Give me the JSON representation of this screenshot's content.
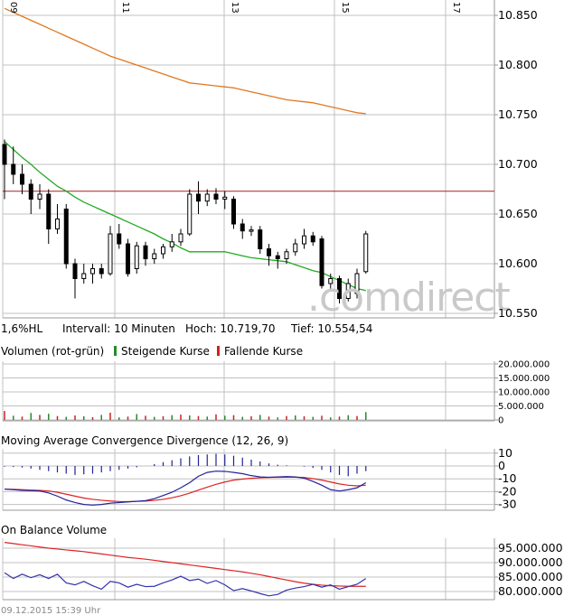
{
  "colors": {
    "grid": "#c0c0c0",
    "border": "#999999",
    "candle": "#000000",
    "ma_slow": "#e07820",
    "ma_fast": "#22aa22",
    "hline": "#aa2020",
    "vol_up": "#2a8a2a",
    "vol_down": "#cc2222",
    "macd_line": "#22229a",
    "signal_line": "#dd2222",
    "obv_line": "#3333aa",
    "obv_ma": "#dd2222"
  },
  "x_date_labels": [
    "09",
    "11",
    "13",
    "15",
    "17"
  ],
  "watermark": ".comdirect",
  "info_row": {
    "range": "1,6%HL",
    "interval": "Intervall: 10 Minuten",
    "high": "Hoch: 10.719,70",
    "low": "Tief: 10.554,54"
  },
  "volume_header": {
    "title": "Volumen (rot-grün)",
    "rising": "Steigende Kurse",
    "falling": "Fallende Kurse"
  },
  "macd_title": "Moving Average Convergence Divergence (12, 26, 9)",
  "obv_title": "On Balance Volume",
  "footer": "09.12.2015 15:39 Uhr",
  "chart_data": [
    {
      "type": "candlestick",
      "panel": "price",
      "y_ticks": [
        "10.850",
        "10.800",
        "10.750",
        "10.700",
        "10.650",
        "10.600",
        "10.550"
      ],
      "ylim": [
        10550,
        10858
      ],
      "candles": [
        {
          "o": 10720,
          "h": 10725,
          "l": 10665,
          "c": 10700
        },
        {
          "o": 10700,
          "h": 10718,
          "l": 10680,
          "c": 10690
        },
        {
          "o": 10690,
          "h": 10700,
          "l": 10670,
          "c": 10680
        },
        {
          "o": 10680,
          "h": 10685,
          "l": 10650,
          "c": 10665
        },
        {
          "o": 10665,
          "h": 10680,
          "l": 10655,
          "c": 10670
        },
        {
          "o": 10670,
          "h": 10675,
          "l": 10620,
          "c": 10635
        },
        {
          "o": 10635,
          "h": 10660,
          "l": 10630,
          "c": 10645
        },
        {
          "o": 10655,
          "h": 10660,
          "l": 10595,
          "c": 10600
        },
        {
          "o": 10600,
          "h": 10605,
          "l": 10565,
          "c": 10585
        },
        {
          "o": 10585,
          "h": 10600,
          "l": 10580,
          "c": 10590
        },
        {
          "o": 10590,
          "h": 10600,
          "l": 10580,
          "c": 10595
        },
        {
          "o": 10595,
          "h": 10600,
          "l": 10585,
          "c": 10590
        },
        {
          "o": 10590,
          "h": 10638,
          "l": 10588,
          "c": 10630
        },
        {
          "o": 10630,
          "h": 10640,
          "l": 10615,
          "c": 10620
        },
        {
          "o": 10620,
          "h": 10625,
          "l": 10587,
          "c": 10590
        },
        {
          "o": 10595,
          "h": 10622,
          "l": 10590,
          "c": 10618
        },
        {
          "o": 10618,
          "h": 10622,
          "l": 10598,
          "c": 10605
        },
        {
          "o": 10605,
          "h": 10615,
          "l": 10600,
          "c": 10610
        },
        {
          "o": 10610,
          "h": 10620,
          "l": 10605,
          "c": 10617
        },
        {
          "o": 10617,
          "h": 10630,
          "l": 10612,
          "c": 10622
        },
        {
          "o": 10622,
          "h": 10635,
          "l": 10618,
          "c": 10630
        },
        {
          "o": 10630,
          "h": 10675,
          "l": 10628,
          "c": 10670
        },
        {
          "o": 10670,
          "h": 10683,
          "l": 10650,
          "c": 10663
        },
        {
          "o": 10663,
          "h": 10675,
          "l": 10658,
          "c": 10670
        },
        {
          "o": 10670,
          "h": 10676,
          "l": 10660,
          "c": 10665
        },
        {
          "o": 10665,
          "h": 10673,
          "l": 10655,
          "c": 10667
        },
        {
          "o": 10665,
          "h": 10668,
          "l": 10635,
          "c": 10640
        },
        {
          "o": 10640,
          "h": 10645,
          "l": 10625,
          "c": 10633
        },
        {
          "o": 10633,
          "h": 10638,
          "l": 10628,
          "c": 10634
        },
        {
          "o": 10634,
          "h": 10638,
          "l": 10610,
          "c": 10615
        },
        {
          "o": 10615,
          "h": 10620,
          "l": 10598,
          "c": 10608
        },
        {
          "o": 10608,
          "h": 10612,
          "l": 10595,
          "c": 10605
        },
        {
          "o": 10605,
          "h": 10615,
          "l": 10600,
          "c": 10612
        },
        {
          "o": 10612,
          "h": 10625,
          "l": 10608,
          "c": 10620
        },
        {
          "o": 10620,
          "h": 10635,
          "l": 10615,
          "c": 10628
        },
        {
          "o": 10628,
          "h": 10632,
          "l": 10618,
          "c": 10622
        },
        {
          "o": 10625,
          "h": 10628,
          "l": 10575,
          "c": 10578
        },
        {
          "o": 10580,
          "h": 10590,
          "l": 10575,
          "c": 10585
        },
        {
          "o": 10585,
          "h": 10588,
          "l": 10560,
          "c": 10565
        },
        {
          "o": 10565,
          "h": 10585,
          "l": 10562,
          "c": 10580
        },
        {
          "o": 10570,
          "h": 10595,
          "l": 10565,
          "c": 10590
        },
        {
          "o": 10592,
          "h": 10633,
          "l": 10590,
          "c": 10630
        }
      ],
      "ma_fast": [
        10723,
        10715,
        10707,
        10700,
        10692,
        10685,
        10678,
        10673,
        10667,
        10662,
        10658,
        10654,
        10650,
        10646,
        10642,
        10638,
        10634,
        10630,
        10625,
        10621,
        10616,
        10612,
        10612,
        10612,
        10612,
        10612,
        10610,
        10608,
        10606,
        10605,
        10604,
        10603,
        10602,
        10599,
        10596,
        10593,
        10591,
        10587,
        10583,
        10579,
        10575,
        10573
      ],
      "ma_slow": [
        10857,
        10853,
        10849,
        10845,
        10841,
        10837,
        10833,
        10829,
        10825,
        10821,
        10817,
        10813,
        10809,
        10806,
        10803,
        10800,
        10797,
        10794,
        10791,
        10788,
        10785,
        10782,
        10781,
        10780,
        10779,
        10778,
        10777,
        10775,
        10773,
        10771,
        10769,
        10767,
        10765,
        10764,
        10763,
        10762,
        10760,
        10758,
        10756,
        10754,
        10752,
        10751
      ],
      "hline": 10673
    },
    {
      "type": "bar",
      "panel": "volume",
      "y_ticks": [
        "20.000.000",
        "15.000.000",
        "10.000.000",
        "5.000.000",
        "0"
      ],
      "ylim": [
        0,
        20000000
      ],
      "values": [
        3200000,
        1500000,
        1200000,
        2500000,
        1800000,
        2200000,
        1400000,
        1100000,
        1600000,
        1300000,
        1000000,
        1800000,
        2600000,
        900000,
        1200000,
        2100000,
        1500000,
        1100000,
        1300000,
        1700000,
        1900000,
        1600000,
        1400000,
        1200000,
        2000000,
        1500000,
        1700000,
        1100000,
        1300000,
        1800000,
        1200000,
        900000,
        1400000,
        1600000,
        1300000,
        1100000,
        1500000,
        900000,
        1200000,
        1700000,
        1400000,
        2800000
      ],
      "up": [
        false,
        true,
        false,
        true,
        false,
        true,
        false,
        true,
        false,
        true,
        false,
        true,
        false,
        true,
        false,
        true,
        false,
        true,
        false,
        true,
        false,
        true,
        false,
        true,
        false,
        true,
        false,
        true,
        false,
        true,
        false,
        true,
        false,
        true,
        false,
        true,
        false,
        true,
        false,
        true,
        false,
        true
      ]
    },
    {
      "type": "line",
      "panel": "macd",
      "y_ticks": [
        "10",
        "0",
        "-10",
        "-20",
        "-30"
      ],
      "ylim": [
        -33,
        13
      ],
      "histogram": [
        -0.5,
        -0.8,
        -1.2,
        -2,
        -3,
        -4,
        -5,
        -6,
        -7,
        -6.5,
        -6,
        -5,
        -4,
        -3,
        -2,
        -1,
        0,
        1.5,
        3,
        4.5,
        6,
        7.5,
        8.5,
        9,
        9.5,
        9,
        8,
        6.5,
        5,
        3.5,
        2,
        1,
        0.5,
        0,
        -0.5,
        -1.5,
        -3,
        -5,
        -7,
        -8,
        -6,
        -4
      ],
      "macd": [
        -18,
        -18.5,
        -19,
        -19.2,
        -19.5,
        -21,
        -23.5,
        -26.5,
        -28.5,
        -30,
        -30.5,
        -30,
        -29,
        -28.5,
        -28,
        -27.5,
        -27,
        -25.5,
        -23,
        -20.5,
        -17,
        -13,
        -8,
        -5,
        -4,
        -4.2,
        -5,
        -6,
        -7.5,
        -8.5,
        -8.8,
        -8.5,
        -8.3,
        -8.5,
        -9.5,
        -12,
        -15,
        -18.5,
        -19.5,
        -18.5,
        -17,
        -13
      ],
      "signal": [
        -18,
        -18.2,
        -18.5,
        -18.8,
        -19,
        -19.5,
        -20.5,
        -22,
        -23.5,
        -25,
        -26,
        -26.7,
        -27.3,
        -27.7,
        -27.8,
        -27.6,
        -27.4,
        -26.8,
        -26,
        -24.8,
        -23.2,
        -21.2,
        -18.8,
        -16.5,
        -14.3,
        -12.5,
        -11,
        -10.2,
        -9.6,
        -9.2,
        -8.9,
        -8.8,
        -8.7,
        -8.7,
        -9,
        -9.8,
        -11,
        -12.5,
        -14,
        -15,
        -15.5,
        -15
      ]
    },
    {
      "type": "line",
      "panel": "obv",
      "y_ticks": [
        "95.000.000",
        "90.000.000",
        "85.000.000",
        "80.000.000"
      ],
      "ylim": [
        77500000,
        98000000
      ],
      "obv": [
        86500000,
        84500000,
        86000000,
        84800000,
        85800000,
        84500000,
        86000000,
        83000000,
        82300000,
        83500000,
        82000000,
        80800000,
        83500000,
        83000000,
        81500000,
        82500000,
        81700000,
        81800000,
        83000000,
        84000000,
        85300000,
        83800000,
        84300000,
        82800000,
        83800000,
        82300000,
        80300000,
        81000000,
        80200000,
        79300000,
        78500000,
        79000000,
        80500000,
        81200000,
        81700000,
        82500000,
        81500000,
        82300000,
        80800000,
        81700000,
        82500000,
        84500000
      ],
      "obv_ma": [
        97000000,
        96600000,
        96200000,
        95800000,
        95400000,
        95000000,
        94700000,
        94400000,
        94100000,
        93800000,
        93400000,
        93000000,
        92600000,
        92200000,
        91800000,
        91500000,
        91200000,
        90800000,
        90400000,
        90000000,
        89600000,
        89200000,
        88800000,
        88400000,
        88000000,
        87600000,
        87200000,
        86800000,
        86300000,
        85800000,
        85200000,
        84600000,
        84000000,
        83400000,
        82900000,
        82500000,
        82200000,
        82000000,
        81900000,
        81800000,
        81800000,
        81800000
      ]
    }
  ]
}
